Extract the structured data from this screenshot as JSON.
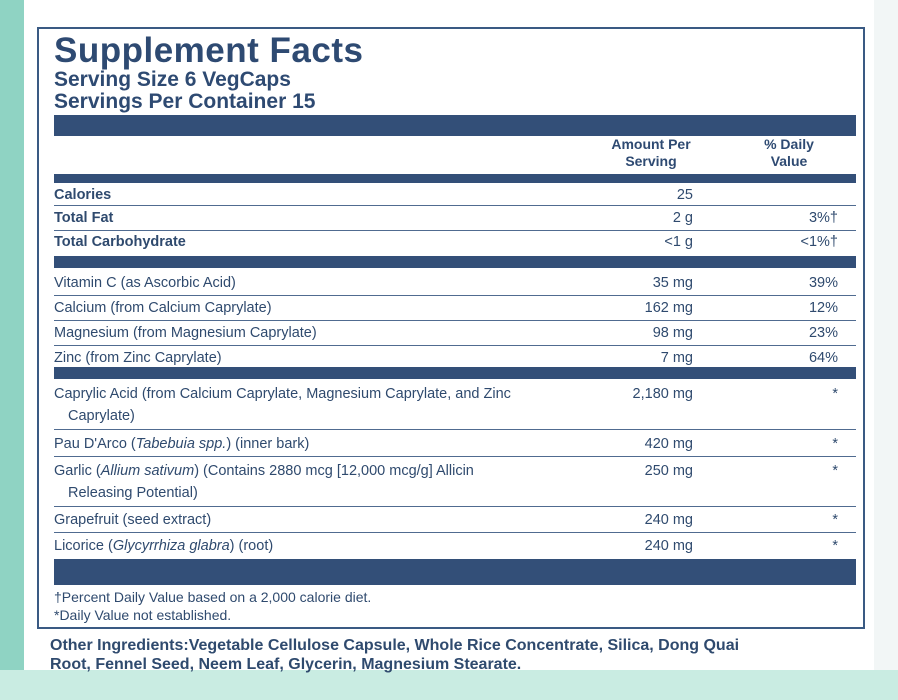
{
  "title": "Supplement Facts",
  "serving_size": "Serving Size 6 VegCaps",
  "servings_per_container": "Servings Per Container 15",
  "header": {
    "amount_line1": "Amount Per",
    "amount_line2": "Serving",
    "dv_line1": "% Daily",
    "dv_line2": "Value"
  },
  "macros": [
    {
      "name": "Calories",
      "amount": "25",
      "dv": ""
    },
    {
      "name": "Total Fat",
      "amount": "2 g",
      "dv": "3%†"
    },
    {
      "name": "Total Carbohydrate",
      "amount": "<1 g",
      "dv": "<1%†"
    }
  ],
  "vitamins": [
    {
      "name": "Vitamin C (as Ascorbic Acid)",
      "amount": "35 mg",
      "dv": "39%"
    },
    {
      "name": "Calcium (from Calcium Caprylate)",
      "amount": "162 mg",
      "dv": "12%"
    },
    {
      "name": "Magnesium (from Magnesium Caprylate)",
      "amount": "98 mg",
      "dv": "23%"
    },
    {
      "name": "Zinc (from Zinc Caprylate)",
      "amount": "7 mg",
      "dv": "64%"
    }
  ],
  "others": [
    {
      "name_line1": "Caprylic Acid (from Calcium Caprylate, Magnesium Caprylate, and Zinc",
      "name_line2": "Caprylate)",
      "amount": "2,180 mg",
      "dv": "*"
    },
    {
      "name_pre": "Pau D'Arco (",
      "name_italic": "Tabebuia spp.",
      "name_post": ") (inner bark)",
      "amount": "420 mg",
      "dv": "*"
    },
    {
      "name_pre": "Garlic (",
      "name_italic": "Allium sativum",
      "name_post": ") (Contains 2880 mcg [12,000 mcg/g] Allicin",
      "name_line2": "Releasing Potential)",
      "amount": "250 mg",
      "dv": "*"
    },
    {
      "name": "Grapefruit (seed extract)",
      "amount": "240 mg",
      "dv": "*"
    },
    {
      "name_pre": "Licorice (",
      "name_italic": "Glycyrrhiza glabra",
      "name_post": ") (root)",
      "amount": "240 mg",
      "dv": "*"
    }
  ],
  "footnotes": [
    "†Percent Daily Value based on a 2,000 calorie diet.",
    "*Daily Value not established."
  ],
  "other_ingredients": {
    "label": "Other Ingredients:",
    "line1": "Vegetable Cellulose Capsule, Whole Rice Concentrate, Silica, Dong Quai",
    "line2": "Root, Fennel Seed, Neem Leaf, Glycerin, Magnesium Stearate."
  },
  "colors": {
    "ink": "#2f4a6e",
    "bar": "#334f78",
    "mint": "#8fd3c3"
  }
}
